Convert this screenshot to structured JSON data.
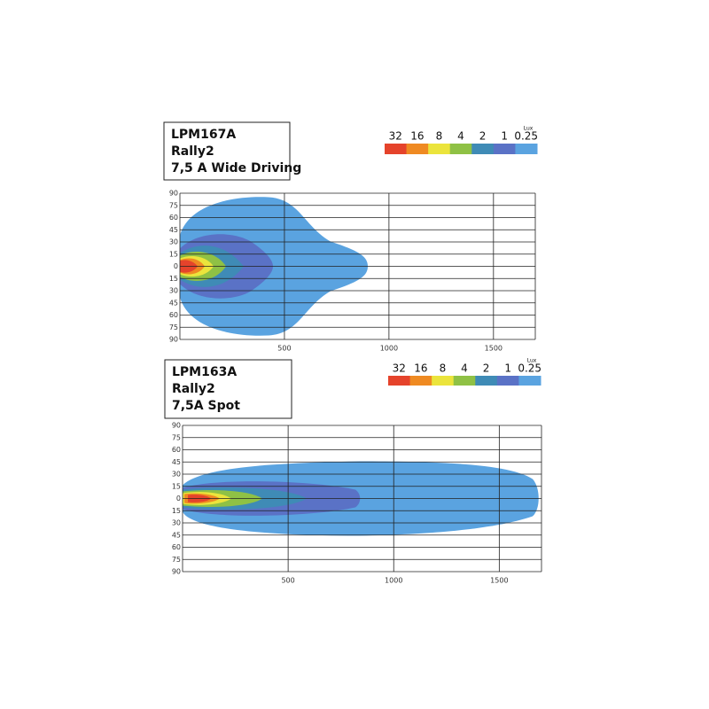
{
  "chart_data": [
    {
      "type": "isolux",
      "title_lines": [
        "LPM167A",
        "Rally2",
        "7,5 A Wide Driving"
      ],
      "legend_unit": "Lux",
      "levels": [
        32,
        16,
        8,
        4,
        2,
        1,
        0.25
      ],
      "colors": [
        "#e5432b",
        "#ef8a22",
        "#ebe43c",
        "#8fc145",
        "#3f8bb6",
        "#5a72c6",
        "#5aa3e0"
      ],
      "xlim": [
        0,
        1700
      ],
      "xticks": [
        500,
        1000,
        1500
      ],
      "ylim": [
        -90,
        90
      ],
      "yticks": [
        90,
        75,
        60,
        45,
        30,
        15,
        0,
        {
          "value": -15,
          "label": "15"
        },
        {
          "value": -30,
          "label": "30"
        },
        {
          "value": -45,
          "label": "45"
        },
        {
          "value": -60,
          "label": "60"
        },
        {
          "value": -75,
          "label": "75"
        },
        {
          "value": -90,
          "label": "90"
        }
      ],
      "grid": true
    },
    {
      "type": "isolux",
      "title_lines": [
        "LPM163A",
        "Rally2",
        "7,5A Spot"
      ],
      "legend_unit": "Lux",
      "levels": [
        32,
        16,
        8,
        4,
        2,
        1,
        0.25
      ],
      "colors": [
        "#e5432b",
        "#ef8a22",
        "#ebe43c",
        "#8fc145",
        "#3f8bb6",
        "#5a72c6",
        "#5aa3e0"
      ],
      "xlim": [
        0,
        1700
      ],
      "xticks": [
        500,
        1000,
        1500
      ],
      "ylim": [
        -90,
        90
      ],
      "yticks": [
        90,
        75,
        60,
        45,
        30,
        15,
        0,
        {
          "value": -15,
          "label": "15"
        },
        {
          "value": -30,
          "label": "30"
        },
        {
          "value": -45,
          "label": "45"
        },
        {
          "value": -60,
          "label": "60"
        },
        {
          "value": -75,
          "label": "75"
        },
        {
          "value": -90,
          "label": "90"
        }
      ],
      "grid": true
    }
  ]
}
